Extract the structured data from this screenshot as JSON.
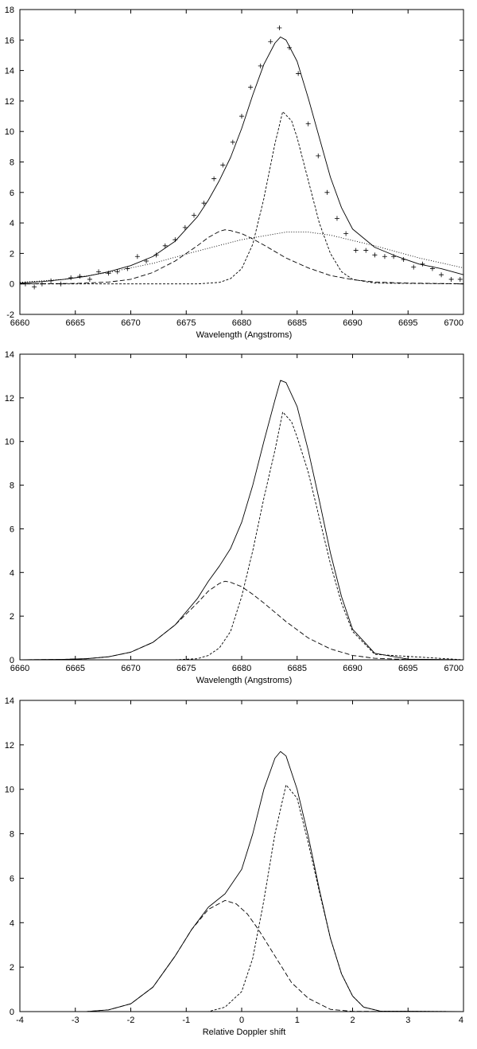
{
  "chart_data": [
    {
      "type": "line",
      "xlabel": "Wavelength (Angstroms)",
      "ylabel": "",
      "xlim": [
        6660,
        6700
      ],
      "ylim": [
        -2,
        18
      ],
      "xticks": [
        6660,
        6665,
        6670,
        6675,
        6680,
        6685,
        6690,
        6695,
        6700
      ],
      "yticks": [
        -2,
        0,
        2,
        4,
        6,
        8,
        10,
        12,
        14,
        16,
        18
      ],
      "grid": false,
      "legend": "none",
      "series": [
        {
          "style": "solid",
          "x": [
            6660,
            6662,
            6664,
            6666,
            6668,
            6670,
            6672,
            6674,
            6676,
            6677,
            6678,
            6679,
            6680,
            6681,
            6682,
            6683,
            6683.5,
            6684,
            6685,
            6686,
            6687,
            6688,
            6689,
            6690,
            6692,
            6694,
            6696,
            6698,
            6700
          ],
          "y": [
            0.05,
            0.15,
            0.3,
            0.5,
            0.8,
            1.2,
            1.8,
            2.8,
            4.4,
            5.5,
            6.8,
            8.3,
            10.2,
            12.4,
            14.4,
            15.8,
            16.2,
            16.0,
            14.6,
            12.2,
            9.6,
            7.0,
            5.0,
            3.6,
            2.4,
            1.8,
            1.3,
            1.0,
            0.6
          ]
        },
        {
          "style": "dashed",
          "x": [
            6660,
            6665,
            6668,
            6670,
            6672,
            6674,
            6676,
            6677,
            6678,
            6678.5,
            6679,
            6680,
            6681,
            6682,
            6684,
            6686,
            6688,
            6690,
            6692,
            6695,
            6700
          ],
          "y": [
            0.0,
            0.03,
            0.12,
            0.3,
            0.75,
            1.5,
            2.5,
            3.05,
            3.45,
            3.55,
            3.5,
            3.3,
            2.95,
            2.55,
            1.7,
            1.05,
            0.55,
            0.28,
            0.12,
            0.05,
            0.01
          ]
        },
        {
          "style": "short-dashed",
          "x": [
            6660,
            6676,
            6678,
            6679,
            6680,
            6681,
            6682,
            6683,
            6683.7,
            6684.5,
            6685,
            6686,
            6687,
            6688,
            6689,
            6690,
            6692,
            6700
          ],
          "y": [
            0.0,
            0.0,
            0.1,
            0.35,
            1.0,
            2.6,
            5.6,
            9.2,
            11.3,
            10.7,
            9.6,
            6.8,
            4.0,
            2.0,
            0.8,
            0.3,
            0.05,
            0.0
          ]
        },
        {
          "style": "dotted",
          "x": [
            6660,
            6664,
            6668,
            6672,
            6676,
            6680,
            6684,
            6686,
            6688,
            6692,
            6696,
            6700
          ],
          "y": [
            0.1,
            0.3,
            0.75,
            1.35,
            2.15,
            2.9,
            3.4,
            3.4,
            3.2,
            2.5,
            1.7,
            1.05
          ]
        },
        {
          "style": "markers",
          "x": [
            6660.5,
            6661.3,
            6662,
            6662.8,
            6663.7,
            6664.6,
            6665.4,
            6666.3,
            6667.1,
            6668,
            6668.8,
            6669.7,
            6670.6,
            6671.4,
            6672.3,
            6673.1,
            6674,
            6674.9,
            6675.7,
            6676.6,
            6677.5,
            6678.3,
            6679.2,
            6680,
            6680.8,
            6681.7,
            6682.6,
            6683.4,
            6684.3,
            6685.1,
            6686,
            6686.9,
            6687.7,
            6688.6,
            6689.4,
            6690.3,
            6691.2,
            6692,
            6692.9,
            6693.7,
            6694.6,
            6695.5,
            6696.3,
            6697.2,
            6698,
            6698.9,
            6699.7
          ],
          "y": [
            0.0,
            -0.2,
            0.0,
            0.2,
            0.0,
            0.4,
            0.5,
            0.3,
            0.8,
            0.7,
            0.8,
            1.0,
            1.8,
            1.5,
            1.9,
            2.5,
            2.9,
            3.7,
            4.5,
            5.3,
            6.9,
            7.8,
            9.3,
            11.0,
            12.9,
            14.3,
            15.9,
            16.8,
            15.5,
            13.8,
            10.5,
            8.4,
            6.0,
            4.3,
            3.3,
            2.2,
            2.2,
            1.9,
            1.8,
            1.8,
            1.6,
            1.1,
            1.3,
            1.0,
            0.6,
            0.3,
            0.3
          ]
        }
      ]
    },
    {
      "type": "line",
      "xlabel": "Wavelength (Angstroms)",
      "ylabel": "",
      "xlim": [
        6660,
        6700
      ],
      "ylim": [
        0,
        14
      ],
      "xticks": [
        6660,
        6665,
        6670,
        6675,
        6680,
        6685,
        6690,
        6695,
        6700
      ],
      "yticks": [
        0,
        2,
        4,
        6,
        8,
        10,
        12,
        14
      ],
      "grid": false,
      "legend": "none",
      "series": [
        {
          "style": "solid",
          "x": [
            6660,
            6664,
            6666,
            6668,
            6670,
            6672,
            6674,
            6676,
            6677,
            6678,
            6679,
            6680,
            6681,
            6682,
            6683,
            6683.5,
            6684,
            6685,
            6686,
            6687,
            6688,
            6689,
            6690,
            6692,
            6695,
            6700
          ],
          "y": [
            0.0,
            0.02,
            0.05,
            0.14,
            0.35,
            0.8,
            1.6,
            2.8,
            3.6,
            4.3,
            5.1,
            6.3,
            8.0,
            10.0,
            11.9,
            12.8,
            12.7,
            11.6,
            9.6,
            7.3,
            4.9,
            2.9,
            1.4,
            0.3,
            0.03,
            0.0
          ]
        },
        {
          "style": "dashed",
          "x": [
            6660,
            6664,
            6666,
            6668,
            6670,
            6672,
            6674,
            6676,
            6677,
            6678,
            6678.5,
            6679,
            6680,
            6681,
            6682,
            6684,
            6686,
            6688,
            6690,
            6692,
            6695,
            6700
          ],
          "y": [
            0.0,
            0.02,
            0.05,
            0.14,
            0.35,
            0.8,
            1.6,
            2.6,
            3.15,
            3.5,
            3.6,
            3.55,
            3.35,
            3.0,
            2.6,
            1.75,
            1.0,
            0.5,
            0.2,
            0.07,
            0.01,
            0.0
          ]
        },
        {
          "style": "short-dashed",
          "x": [
            6660,
            6674,
            6676,
            6677,
            6678,
            6679,
            6680,
            6681,
            6682,
            6683,
            6683.7,
            6684.5,
            6685,
            6686,
            6687,
            6688,
            6689,
            6690,
            6692,
            6700
          ],
          "y": [
            0.0,
            0.0,
            0.05,
            0.2,
            0.55,
            1.3,
            2.9,
            5.0,
            7.4,
            9.6,
            11.35,
            10.9,
            10.2,
            8.6,
            6.5,
            4.4,
            2.6,
            1.3,
            0.25,
            0.0
          ]
        }
      ]
    },
    {
      "type": "line",
      "xlabel": "Relative Doppler shift",
      "ylabel": "",
      "xlim": [
        -4,
        4
      ],
      "ylim": [
        0,
        14
      ],
      "xticks": [
        -4,
        -3,
        -2,
        -1,
        0,
        1,
        2,
        3,
        4
      ],
      "yticks": [
        0,
        2,
        4,
        6,
        8,
        10,
        12,
        14
      ],
      "grid": false,
      "legend": "none",
      "series": [
        {
          "style": "solid",
          "x": [
            -4,
            -2.8,
            -2.4,
            -2.0,
            -1.6,
            -1.2,
            -0.9,
            -0.6,
            -0.3,
            0,
            0.2,
            0.4,
            0.6,
            0.7,
            0.8,
            1.0,
            1.2,
            1.4,
            1.6,
            1.8,
            2.0,
            2.2,
            2.5,
            4
          ],
          "y": [
            0.0,
            0.0,
            0.08,
            0.35,
            1.1,
            2.5,
            3.7,
            4.7,
            5.3,
            6.4,
            8.0,
            10.0,
            11.4,
            11.7,
            11.5,
            10.0,
            7.9,
            5.5,
            3.3,
            1.7,
            0.7,
            0.2,
            0.02,
            0.0
          ]
        },
        {
          "style": "dashed",
          "x": [
            -4,
            -2.8,
            -2.4,
            -2.0,
            -1.6,
            -1.2,
            -0.9,
            -0.6,
            -0.3,
            -0.1,
            0.1,
            0.3,
            0.6,
            0.9,
            1.2,
            1.6,
            2.0,
            4
          ],
          "y": [
            0.0,
            0.0,
            0.08,
            0.35,
            1.1,
            2.5,
            3.7,
            4.6,
            5.0,
            4.85,
            4.4,
            3.7,
            2.5,
            1.3,
            0.6,
            0.1,
            0.01,
            0.0
          ]
        },
        {
          "style": "short-dashed",
          "x": [
            -4,
            -0.6,
            -0.3,
            0,
            0.2,
            0.4,
            0.6,
            0.8,
            1.0,
            1.2,
            1.4,
            1.6,
            1.8,
            2.0,
            2.2,
            2.5,
            4
          ],
          "y": [
            0.0,
            0.0,
            0.2,
            0.9,
            2.4,
            5.0,
            8.0,
            10.2,
            9.6,
            7.6,
            5.4,
            3.3,
            1.7,
            0.7,
            0.2,
            0.02,
            0.0
          ]
        }
      ]
    }
  ]
}
